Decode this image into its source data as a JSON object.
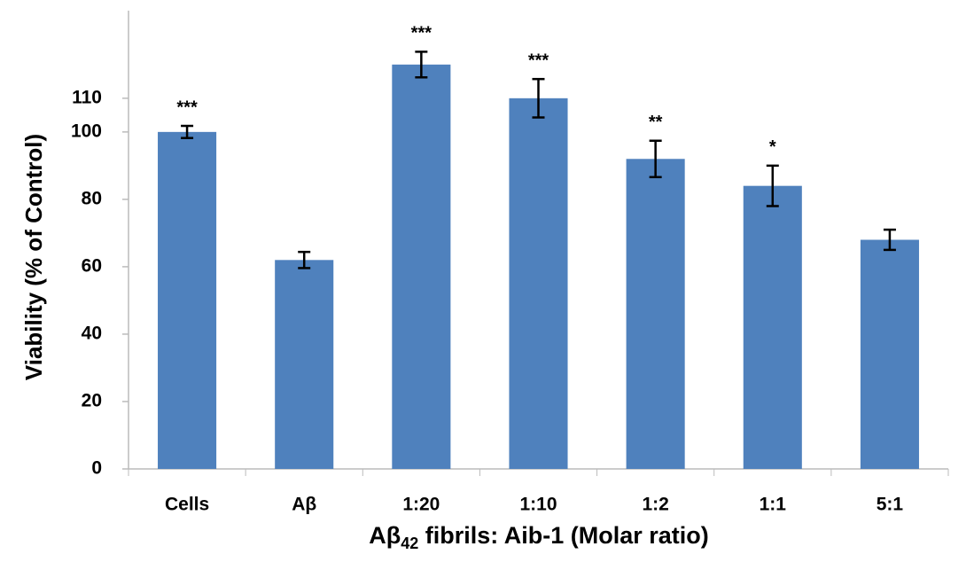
{
  "chart_data": {
    "type": "bar",
    "ylabel": "Viability (% of Control)",
    "xlabel": [
      "Aβ",
      "42",
      " fibrils: Aib-1 (Molar ratio)"
    ],
    "categories": [
      "Cells",
      "Aβ",
      "1:20",
      "1:10",
      "1:2",
      "1:1",
      "5:1"
    ],
    "values": [
      100,
      62,
      120,
      110,
      92,
      84,
      68
    ],
    "errors": [
      1.8,
      2.4,
      3.8,
      5.7,
      5.4,
      6,
      3
    ],
    "annotations": [
      "***",
      null,
      "***",
      "***",
      "**",
      "*",
      null
    ],
    "color": "#4f81bd",
    "ylim": [
      0,
      136
    ],
    "yticks": [
      0,
      20,
      40,
      60,
      80,
      100,
      110
    ]
  }
}
